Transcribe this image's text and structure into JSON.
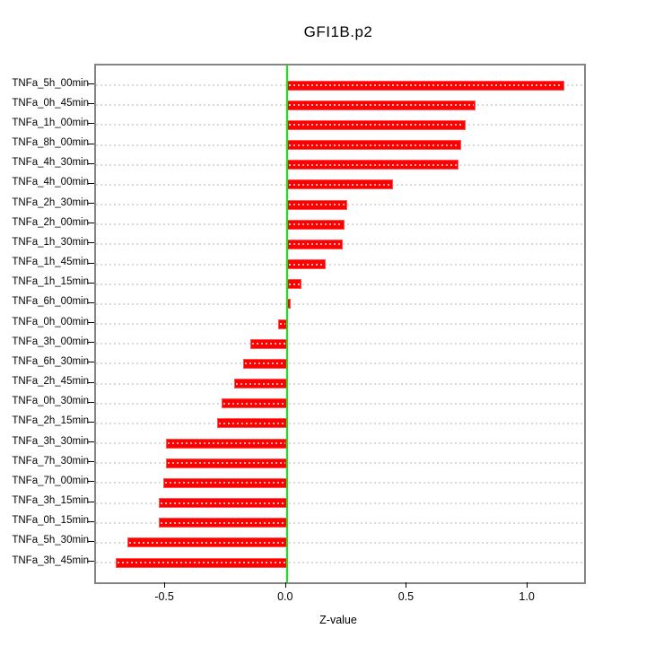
{
  "chart_data": {
    "type": "bar",
    "orientation": "horizontal",
    "title": "GFI1B.p2",
    "xlabel": "Z-value",
    "categories": [
      "TNFa_5h_00min",
      "TNFa_0h_45min",
      "TNFa_1h_00min",
      "TNFa_8h_00min",
      "TNFa_4h_30min",
      "TNFa_4h_00min",
      "TNFa_2h_30min",
      "TNFa_2h_00min",
      "TNFa_1h_30min",
      "TNFa_1h_45min",
      "TNFa_1h_15min",
      "TNFa_6h_00min",
      "TNFa_0h_00min",
      "TNFa_3h_00min",
      "TNFa_6h_30min",
      "TNFa_2h_45min",
      "TNFa_0h_30min",
      "TNFa_2h_15min",
      "TNFa_3h_30min",
      "TNFa_7h_30min",
      "TNFa_7h_00min",
      "TNFa_3h_15min",
      "TNFa_0h_15min",
      "TNFa_5h_30min",
      "TNFa_3h_45min"
    ],
    "values": [
      1.15,
      0.78,
      0.74,
      0.72,
      0.71,
      0.44,
      0.25,
      0.24,
      0.23,
      0.16,
      0.06,
      0.015,
      -0.035,
      -0.15,
      -0.18,
      -0.22,
      -0.27,
      -0.29,
      -0.5,
      -0.5,
      -0.51,
      -0.53,
      -0.53,
      -0.66,
      -0.71
    ],
    "xlim": [
      -0.79,
      1.23
    ],
    "x_ticks": [
      -0.5,
      0.0,
      0.5,
      1.0
    ],
    "x_tick_labels": [
      "-0.5",
      "0.0",
      "0.5",
      "1.0"
    ],
    "baseline_value": 0,
    "grid": true,
    "legend": "none",
    "colors": {
      "bar": "#ff0000",
      "bar_border": "#ff5252",
      "bar_dash_overlay": "#ffffff",
      "baseline": "#00f400",
      "grid": "#d9d9d9",
      "box": "#848484",
      "text": "#000000",
      "background": "#ffffff"
    }
  }
}
